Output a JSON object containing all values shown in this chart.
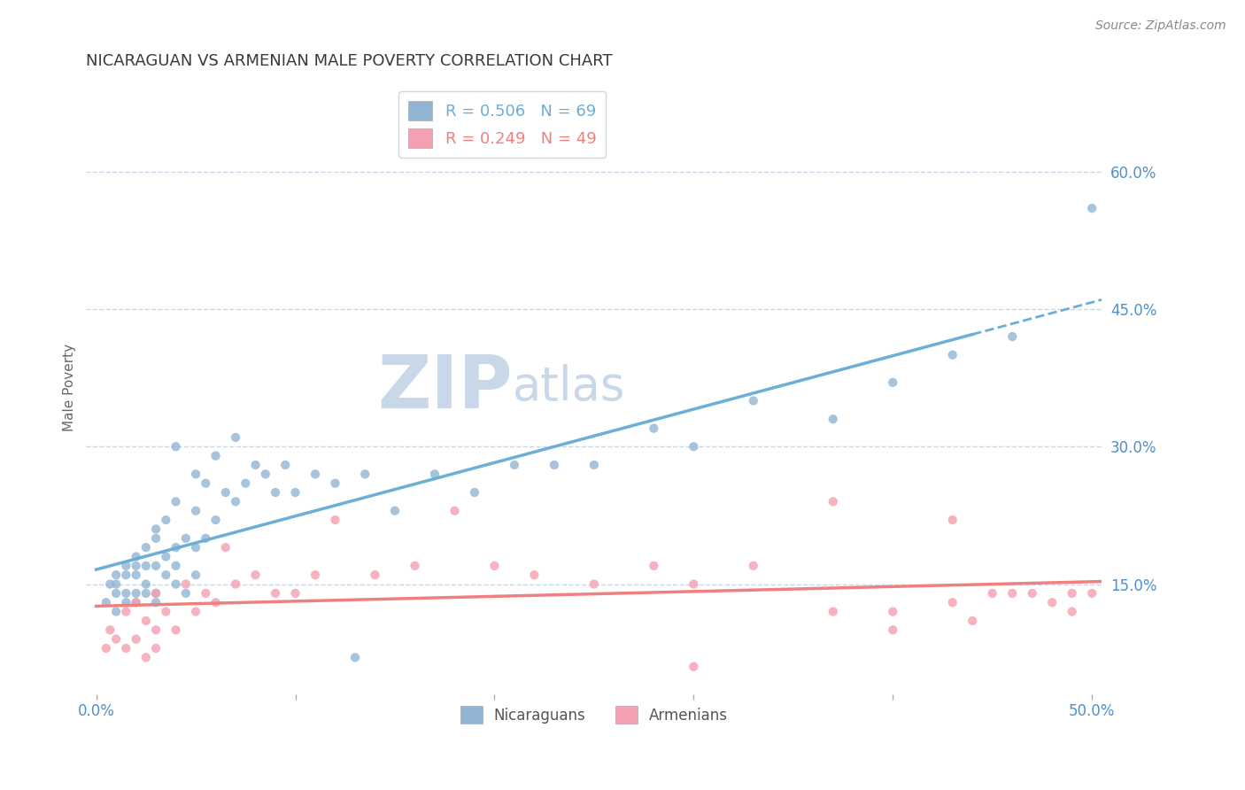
{
  "title": "NICARAGUAN VS ARMENIAN MALE POVERTY CORRELATION CHART",
  "source_text": "Source: ZipAtlas.com",
  "ylabel": "Male Poverty",
  "xlim": [
    -0.005,
    0.505
  ],
  "ylim": [
    0.03,
    0.7
  ],
  "xtick_vals": [
    0.0,
    0.1,
    0.2,
    0.3,
    0.4,
    0.5
  ],
  "xtick_labels_show": [
    "0.0%",
    "",
    "",
    "",
    "",
    "50.0%"
  ],
  "ytick_vals_right": [
    0.15,
    0.3,
    0.45,
    0.6
  ],
  "ytick_labels_right": [
    "15.0%",
    "30.0%",
    "45.0%",
    "60.0%"
  ],
  "grid_color": "#c8d8e8",
  "nicaraguan_color": "#92b4d4",
  "armenian_color": "#f4a0b0",
  "nicaraguan_R": 0.506,
  "nicaraguan_N": 69,
  "armenian_R": 0.249,
  "armenian_N": 49,
  "watermark_zip": "ZIP",
  "watermark_atlas": "atlas",
  "watermark_color": "#c8d8e8",
  "background_color": "#ffffff",
  "title_color": "#3a3a3a",
  "tick_label_color": "#5090c8",
  "source_color": "#888888",
  "legend_text_color": "#5090c8",
  "bottom_legend_color": "#555555",
  "nic_line_solid_end": 0.44,
  "nic_line_color": "#6baed6",
  "arm_line_color": "#f08080",
  "nicaraguans_x": [
    0.005,
    0.007,
    0.01,
    0.01,
    0.01,
    0.01,
    0.015,
    0.015,
    0.015,
    0.015,
    0.02,
    0.02,
    0.02,
    0.02,
    0.02,
    0.025,
    0.025,
    0.025,
    0.025,
    0.03,
    0.03,
    0.03,
    0.03,
    0.03,
    0.035,
    0.035,
    0.035,
    0.04,
    0.04,
    0.04,
    0.04,
    0.04,
    0.045,
    0.045,
    0.05,
    0.05,
    0.05,
    0.05,
    0.055,
    0.055,
    0.06,
    0.06,
    0.065,
    0.07,
    0.07,
    0.075,
    0.08,
    0.085,
    0.09,
    0.095,
    0.1,
    0.11,
    0.12,
    0.13,
    0.135,
    0.15,
    0.17,
    0.19,
    0.21,
    0.23,
    0.25,
    0.28,
    0.3,
    0.33,
    0.37,
    0.4,
    0.43,
    0.46,
    0.5
  ],
  "nicaraguans_y": [
    0.13,
    0.15,
    0.12,
    0.14,
    0.15,
    0.16,
    0.13,
    0.14,
    0.16,
    0.17,
    0.13,
    0.14,
    0.16,
    0.17,
    0.18,
    0.14,
    0.15,
    0.17,
    0.19,
    0.13,
    0.14,
    0.17,
    0.2,
    0.21,
    0.16,
    0.18,
    0.22,
    0.15,
    0.17,
    0.19,
    0.24,
    0.3,
    0.14,
    0.2,
    0.16,
    0.19,
    0.23,
    0.27,
    0.2,
    0.26,
    0.22,
    0.29,
    0.25,
    0.24,
    0.31,
    0.26,
    0.28,
    0.27,
    0.25,
    0.28,
    0.25,
    0.27,
    0.26,
    0.07,
    0.27,
    0.23,
    0.27,
    0.25,
    0.28,
    0.28,
    0.28,
    0.32,
    0.3,
    0.35,
    0.33,
    0.37,
    0.4,
    0.42,
    0.56
  ],
  "armenians_x": [
    0.005,
    0.007,
    0.01,
    0.015,
    0.015,
    0.02,
    0.02,
    0.025,
    0.025,
    0.03,
    0.03,
    0.03,
    0.035,
    0.04,
    0.045,
    0.05,
    0.055,
    0.06,
    0.065,
    0.07,
    0.08,
    0.09,
    0.1,
    0.11,
    0.12,
    0.14,
    0.16,
    0.18,
    0.2,
    0.22,
    0.25,
    0.28,
    0.3,
    0.33,
    0.37,
    0.4,
    0.43,
    0.44,
    0.46,
    0.47,
    0.48,
    0.49,
    0.49,
    0.5,
    0.43,
    0.45,
    0.4,
    0.37,
    0.3
  ],
  "armenians_y": [
    0.08,
    0.1,
    0.09,
    0.08,
    0.12,
    0.09,
    0.13,
    0.07,
    0.11,
    0.08,
    0.1,
    0.14,
    0.12,
    0.1,
    0.15,
    0.12,
    0.14,
    0.13,
    0.19,
    0.15,
    0.16,
    0.14,
    0.14,
    0.16,
    0.22,
    0.16,
    0.17,
    0.23,
    0.17,
    0.16,
    0.15,
    0.17,
    0.15,
    0.17,
    0.24,
    0.12,
    0.22,
    0.11,
    0.14,
    0.14,
    0.13,
    0.14,
    0.12,
    0.14,
    0.13,
    0.14,
    0.1,
    0.12,
    0.06
  ]
}
